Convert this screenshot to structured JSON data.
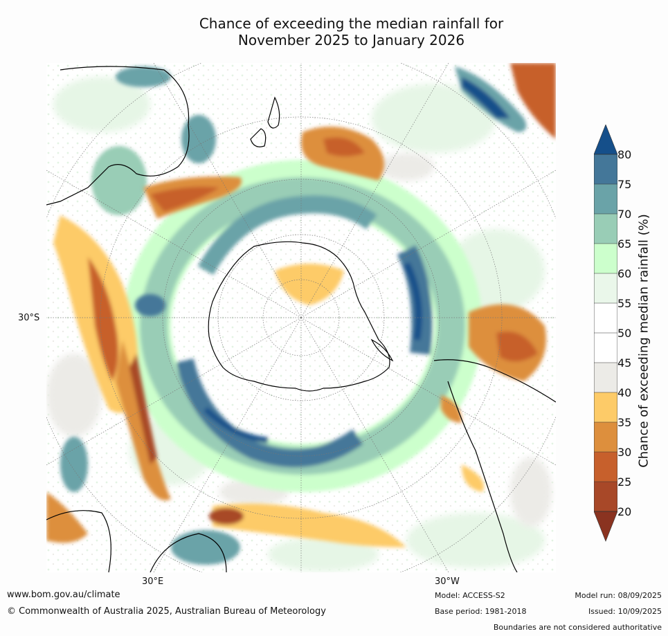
{
  "title_line1": "Chance of exceeding the median rainfall for",
  "title_line2": "November 2025 to January 2026",
  "map": {
    "projection": "south-polar-stereographic",
    "lat_label_left": "30°S",
    "lon_label_bottom_left": "30°E",
    "lon_label_bottom_right": "30°W"
  },
  "colorbar": {
    "title": "Chance of exceeding median rainfall (%)",
    "ticks": [
      "80",
      "75",
      "70",
      "65",
      "60",
      "55",
      "50",
      "45",
      "40",
      "35",
      "30",
      "25",
      "20"
    ],
    "bins": [
      {
        "range": ">80",
        "color": "#154f8a"
      },
      {
        "range": "75-80",
        "color": "#447799"
      },
      {
        "range": "70-75",
        "color": "#6aa3a8"
      },
      {
        "range": "65-70",
        "color": "#99cdb6"
      },
      {
        "range": "60-65",
        "color": "#ccffcc"
      },
      {
        "range": "55-60",
        "color": "#eaf7ea"
      },
      {
        "range": "50-55",
        "color": "#ffffff"
      },
      {
        "range": "45-50",
        "color": "#ffffff"
      },
      {
        "range": "40-45",
        "color": "#ecebe7"
      },
      {
        "range": "35-40",
        "color": "#fdcb68"
      },
      {
        "range": "30-35",
        "color": "#dd8f3d"
      },
      {
        "range": "25-30",
        "color": "#c7602c"
      },
      {
        "range": "20-25",
        "color": "#a84828"
      },
      {
        "range": "<20",
        "color": "#8a3320"
      }
    ]
  },
  "footer": {
    "website": "www.bom.gov.au/climate",
    "copyright": "© Commonwealth of Australia 2025, Australian Bureau of Meteorology",
    "model": "Model: ACCESS-S2",
    "base_period": "Base period: 1981-2018",
    "model_run": "Model run: 08/09/2025",
    "issued": "Issued: 10/09/2025",
    "disclaimer": "Boundaries are not considered authoritative"
  }
}
